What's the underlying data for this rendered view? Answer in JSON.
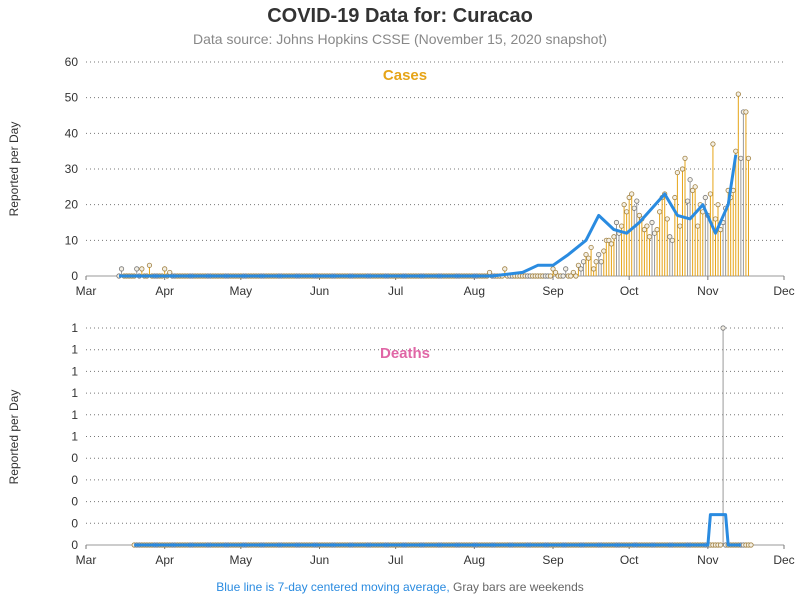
{
  "title": "COVID-19 Data for: Curacao",
  "subtitle": "Data source: Johns Hopkins CSSE (November 15, 2020 snapshot)",
  "footnote": {
    "blue_text": "Blue line is 7-day centered moving average,",
    "gray_text": "Gray bars are weekends"
  },
  "colors": {
    "cases": "#e6a417",
    "deaths": "#e066a6",
    "moving_average": "#2a8be0",
    "weekend_bars": "#9a9a9a",
    "text": "#333333"
  },
  "chart_data": [
    {
      "type": "bar",
      "panel_label": "Cases",
      "ylabel": "Reported per Day",
      "ylim": [
        0,
        60
      ],
      "y_ticks": [
        "0",
        "10",
        "20",
        "30",
        "40",
        "50",
        "60"
      ],
      "x_ticks": [
        "Mar",
        "Apr",
        "May",
        "Jun",
        "Jul",
        "Aug",
        "Sep",
        "Oct",
        "Nov",
        "Dec"
      ],
      "x_range": [
        "2020-03-01",
        "2020-12-01"
      ],
      "grid": true,
      "series": [
        {
          "start_date": "2020-03-14",
          "values": [
            0,
            2,
            0,
            0,
            0,
            0,
            0,
            2,
            0,
            2,
            0,
            0,
            3,
            0,
            0,
            0,
            0,
            0,
            2,
            0,
            1,
            0,
            0,
            0,
            0,
            0,
            0,
            0,
            0,
            0,
            0,
            0,
            0,
            0,
            0,
            0,
            0,
            0,
            0,
            0,
            0,
            0,
            0,
            0,
            0,
            0,
            0,
            0,
            0,
            0,
            0,
            0,
            0,
            0,
            0,
            0,
            0,
            0,
            0,
            0,
            0,
            0,
            0,
            0,
            0,
            0,
            0,
            0,
            0,
            0,
            0,
            0,
            0,
            0,
            0,
            0,
            0,
            0,
            0,
            0,
            0,
            0,
            0,
            0,
            0,
            0,
            0,
            0,
            0,
            0,
            0,
            0,
            0,
            0,
            0,
            0,
            0,
            0,
            0,
            0,
            0,
            0,
            0,
            0,
            0,
            0,
            0,
            0,
            0,
            0,
            0,
            0,
            0,
            0,
            0,
            0,
            0,
            0,
            0,
            0,
            0,
            0,
            0,
            0,
            0,
            0,
            0,
            0,
            0,
            0,
            0,
            0,
            0,
            0,
            0,
            0,
            0,
            0,
            0,
            0,
            0,
            0,
            0,
            0,
            0,
            0,
            1,
            0,
            0,
            0,
            0,
            0,
            2,
            0,
            0,
            0,
            0,
            0,
            0,
            0,
            0,
            0,
            0,
            0,
            0,
            0,
            0,
            0,
            0,
            0,
            0,
            2,
            1,
            0,
            0,
            0,
            2,
            0,
            0,
            1,
            0,
            3,
            2,
            4,
            6,
            5,
            8,
            2,
            4,
            6,
            4,
            7,
            10,
            10,
            9,
            11,
            15,
            12,
            14,
            20,
            18,
            22,
            23,
            19,
            21,
            17,
            16,
            13,
            14,
            11,
            15,
            12,
            13,
            18,
            22,
            23,
            16,
            11,
            10,
            22,
            29,
            14,
            30,
            33,
            21,
            27,
            24,
            25,
            14,
            20,
            18,
            22,
            17,
            23,
            37,
            16,
            20,
            13,
            15,
            19,
            24,
            22,
            24,
            35,
            51,
            33,
            46,
            46,
            33
          ],
          "weekend_values_shown_as_gray_bars": true
        },
        {
          "name": "7-day centered moving average",
          "kind": "line",
          "values_by_date": [
            [
              "2020-03-14",
              0
            ],
            [
              "2020-08-08",
              0
            ],
            [
              "2020-08-20",
              1
            ],
            [
              "2020-08-26",
              3
            ],
            [
              "2020-09-01",
              3
            ],
            [
              "2020-09-07",
              6
            ],
            [
              "2020-09-14",
              10
            ],
            [
              "2020-09-19",
              17
            ],
            [
              "2020-09-25",
              13
            ],
            [
              "2020-09-30",
              12
            ],
            [
              "2020-10-05",
              15
            ],
            [
              "2020-10-10",
              19
            ],
            [
              "2020-10-15",
              23
            ],
            [
              "2020-10-20",
              17
            ],
            [
              "2020-10-25",
              16
            ],
            [
              "2020-10-30",
              20
            ],
            [
              "2020-11-04",
              12
            ],
            [
              "2020-11-09",
              20
            ],
            [
              "2020-11-12",
              34
            ]
          ]
        }
      ]
    },
    {
      "type": "bar",
      "panel_label": "Deaths",
      "ylabel": "Reported per Day",
      "ylim": [
        0,
        1
      ],
      "y_ticks": [
        "0",
        "0",
        "0",
        "0",
        "0",
        "1",
        "1",
        "1",
        "1",
        "1",
        "1"
      ],
      "x_ticks": [
        "Mar",
        "Apr",
        "May",
        "Jun",
        "Jul",
        "Aug",
        "Sep",
        "Oct",
        "Nov",
        "Dec"
      ],
      "x_range": [
        "2020-03-01",
        "2020-12-01"
      ],
      "grid": true,
      "series": [
        {
          "start_date": "2020-03-20",
          "values": [
            0,
            0,
            0,
            0,
            0,
            0,
            0,
            0,
            0,
            0,
            0,
            0,
            0,
            0,
            0,
            0,
            0,
            0,
            0,
            0,
            0,
            0,
            0,
            0,
            0,
            0,
            0,
            0,
            0,
            0,
            0,
            0,
            0,
            0,
            0,
            0,
            0,
            0,
            0,
            0,
            0,
            0,
            0,
            0,
            0,
            0,
            0,
            0,
            0,
            0,
            0,
            0,
            0,
            0,
            0,
            0,
            0,
            0,
            0,
            0,
            0,
            0,
            0,
            0,
            0,
            0,
            0,
            0,
            0,
            0,
            0,
            0,
            0,
            0,
            0,
            0,
            0,
            0,
            0,
            0,
            0,
            0,
            0,
            0,
            0,
            0,
            0,
            0,
            0,
            0,
            0,
            0,
            0,
            0,
            0,
            0,
            0,
            0,
            0,
            0,
            0,
            0,
            0,
            0,
            0,
            0,
            0,
            0,
            0,
            0,
            0,
            0,
            0,
            0,
            0,
            0,
            0,
            0,
            0,
            0,
            0,
            0,
            0,
            0,
            0,
            0,
            0,
            0,
            0,
            0,
            0,
            0,
            0,
            0,
            0,
            0,
            0,
            0,
            0,
            0,
            0,
            0,
            0,
            0,
            0,
            0,
            0,
            0,
            0,
            0,
            0,
            0,
            0,
            0,
            0,
            0,
            0,
            0,
            0,
            0,
            0,
            0,
            0,
            0,
            0,
            0,
            0,
            0,
            0,
            0,
            0,
            0,
            0,
            0,
            0,
            0,
            0,
            0,
            0,
            0,
            0,
            0,
            0,
            0,
            0,
            0,
            0,
            0,
            0,
            0,
            0,
            0,
            0,
            0,
            0,
            0,
            0,
            0,
            0,
            0,
            0,
            0,
            0,
            0,
            0,
            0,
            0,
            0,
            0,
            0,
            0,
            0,
            0,
            0,
            0,
            0,
            0,
            0,
            0,
            0,
            0,
            0,
            0,
            0,
            0,
            0,
            0,
            0,
            0,
            0,
            0,
            0,
            1,
            0,
            0,
            0,
            0,
            0,
            0,
            0,
            0,
            0,
            0,
            0
          ]
        },
        {
          "name": "7-day centered moving average",
          "kind": "line",
          "values_by_date": [
            [
              "2020-03-20",
              0
            ],
            [
              "2020-11-01",
              0
            ],
            [
              "2020-11-02",
              0.14
            ],
            [
              "2020-11-08",
              0.14
            ],
            [
              "2020-11-09",
              0
            ],
            [
              "2020-11-14",
              0
            ]
          ]
        }
      ]
    }
  ]
}
